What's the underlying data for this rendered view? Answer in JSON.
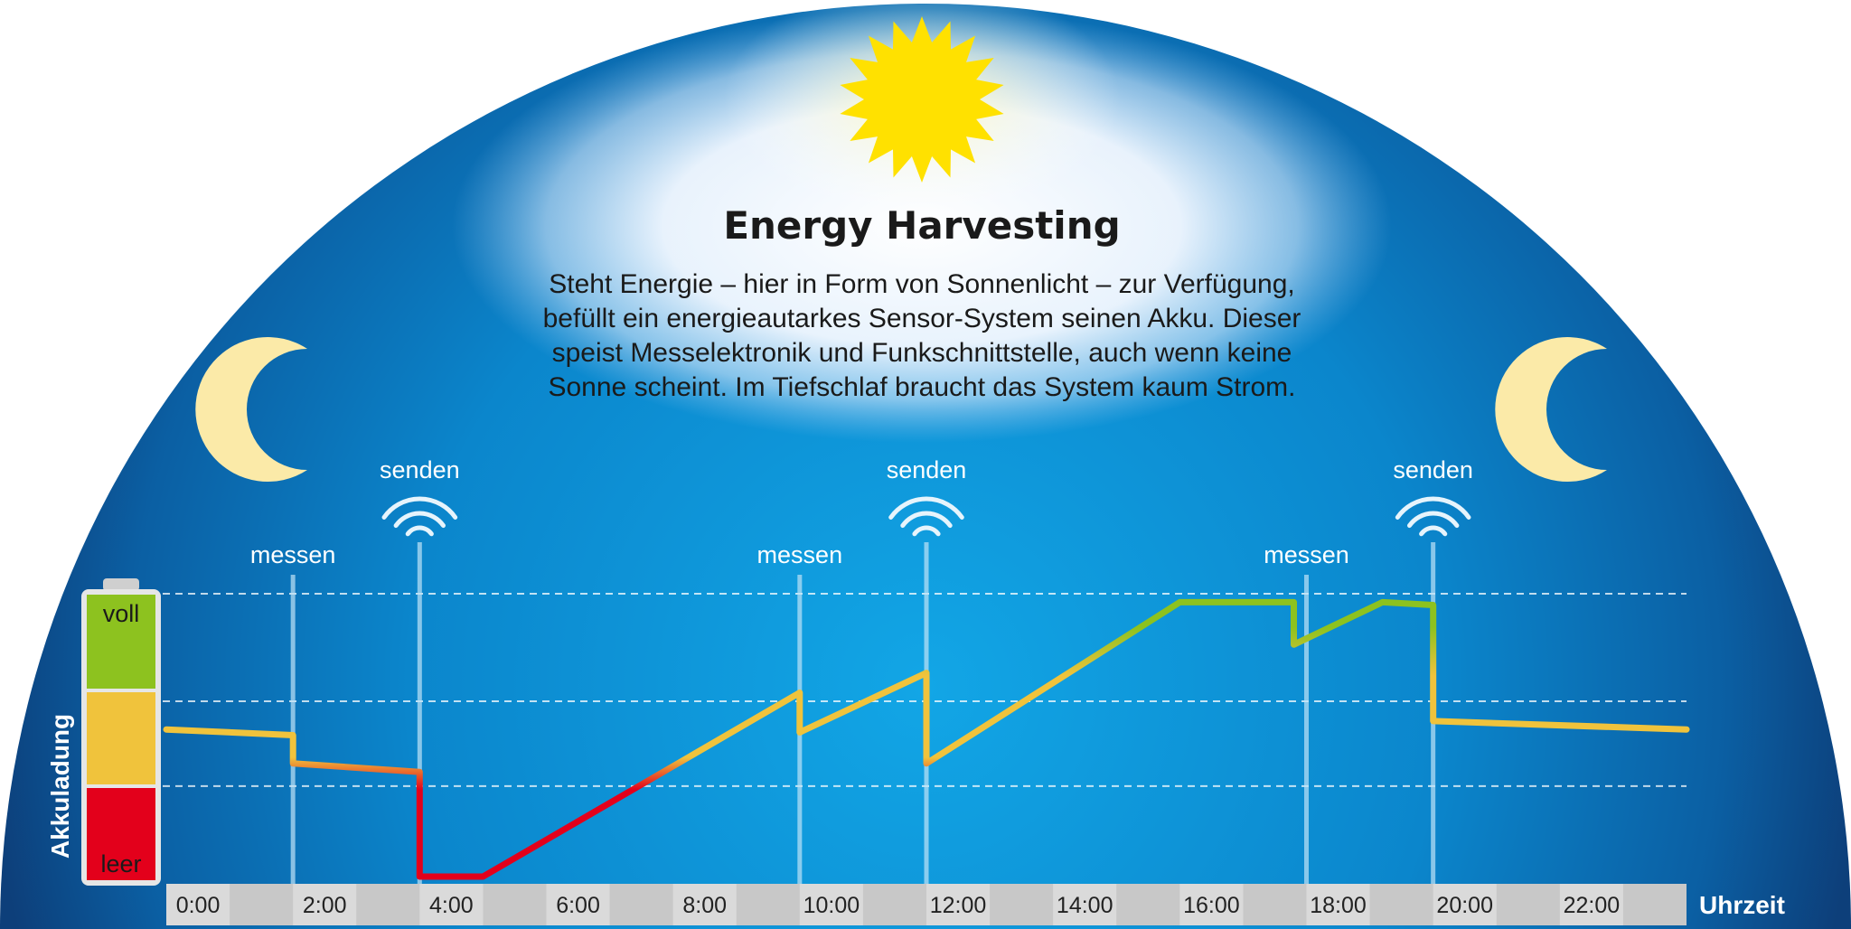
{
  "header": {
    "title": "Energy Harvesting",
    "description_lines": [
      "Steht Energie – hier in Form von Sonnenlicht – zur Verfügung,",
      "befüllt ein energieautarkes Sensor-System seinen Akku. Dieser",
      "speist Messelektronik und Funkschnittstelle, auch wenn keine",
      "Sonne scheint. Im Tiefschlaf braucht das System kaum Strom."
    ]
  },
  "colors": {
    "sky_dark": "#0d3f7a",
    "sky_light": "#12a6e6",
    "sun": "#ffe100",
    "moon": "#fbeaa8",
    "level_full": "#8dc21f",
    "level_mid": "#f0c33c",
    "level_empty": "#e3001b",
    "axis_band": "#c8c8c8"
  },
  "icons": {
    "sun": "sun-icon",
    "moon_left": "crescent-moon-icon",
    "moon_right": "crescent-moon-icon",
    "radio": "radio-waves-icon"
  },
  "battery": {
    "label_full": "voll",
    "label_empty": "leer",
    "axis_title": "Akkuladung"
  },
  "events": {
    "measure_label": "messen",
    "send_label": "senden",
    "measure_times": [
      2.0,
      10.0,
      18.0
    ],
    "send_times": [
      4.0,
      12.0,
      20.0
    ]
  },
  "time_axis": {
    "title": "Uhrzeit",
    "ticks": [
      "0:00",
      "2:00",
      "4:00",
      "6:00",
      "8:00",
      "10:00",
      "12:00",
      "14:00",
      "16:00",
      "18:00",
      "20:00",
      "22:00"
    ],
    "range": [
      0,
      24
    ]
  },
  "chart_data": {
    "type": "line",
    "xlabel": "Uhrzeit",
    "ylabel": "Akkuladung",
    "xlim": [
      0,
      24
    ],
    "ylim": [
      0,
      1
    ],
    "y_levels": {
      "leer": 0,
      "voll": 1
    },
    "grid_levels": [
      0.32,
      0.62,
      1.0
    ],
    "series": [
      {
        "points": [
          [
            0.0,
            0.52
          ],
          [
            2.0,
            0.5
          ],
          [
            2.0,
            0.4
          ],
          [
            4.0,
            0.37
          ],
          [
            4.0,
            0.0
          ],
          [
            5.0,
            0.0
          ],
          [
            10.0,
            0.65
          ],
          [
            10.0,
            0.51
          ],
          [
            12.0,
            0.72
          ],
          [
            12.0,
            0.4
          ],
          [
            16.0,
            0.97
          ],
          [
            17.8,
            0.97
          ],
          [
            17.8,
            0.82
          ],
          [
            19.2,
            0.97
          ],
          [
            20.0,
            0.96
          ],
          [
            20.0,
            0.55
          ],
          [
            24.0,
            0.52
          ]
        ]
      }
    ]
  }
}
